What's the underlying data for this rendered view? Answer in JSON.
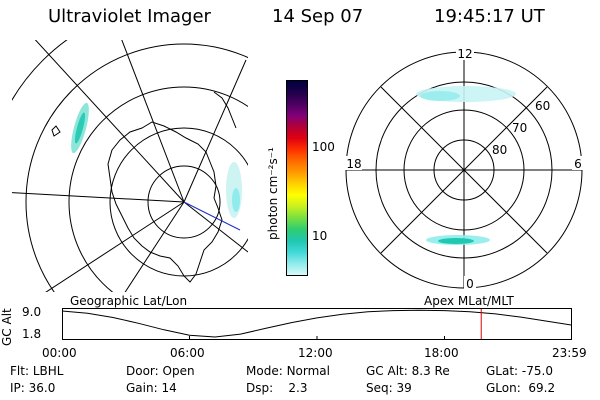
{
  "header": {
    "instrument": "Ultraviolet Imager",
    "date": "14 Sep 07",
    "time": "19:45:17 UT"
  },
  "colorbar": {
    "unit_label": "photon cm⁻²s⁻¹",
    "ticks": [
      "100",
      "10"
    ],
    "colors": [
      "#000040",
      "#20004a",
      "#4a0060",
      "#80007a",
      "#b0003a",
      "#e00010",
      "#ff3000",
      "#ff6a00",
      "#ff9a00",
      "#ffd000",
      "#ffff00",
      "#c8f020",
      "#78e040",
      "#30cc70",
      "#20c8b0",
      "#40d8d8",
      "#90ecec",
      "#d8f8f8"
    ]
  },
  "geo_panel": {
    "caption": "Geographic Lat/Lon"
  },
  "apex_panel": {
    "caption": "Apex MLat/MLT",
    "mlt_labels": {
      "top": "12",
      "left": "18",
      "right": "6",
      "bottom": "0"
    },
    "lat_labels": [
      "60",
      "70",
      "80"
    ]
  },
  "altitude_plot": {
    "axis_label": "GC Alt",
    "y_ticks": [
      "9.0",
      "1.8"
    ],
    "x_ticks": [
      "00:00",
      "06:00",
      "12:00",
      "18:00",
      "23:59"
    ],
    "current_time_fraction": 0.822,
    "orbit_curve": [
      [
        0,
        9.0
      ],
      [
        0.05,
        8.4
      ],
      [
        0.1,
        7.2
      ],
      [
        0.15,
        5.6
      ],
      [
        0.2,
        3.8
      ],
      [
        0.25,
        2.3
      ],
      [
        0.3,
        1.8
      ],
      [
        0.35,
        2.6
      ],
      [
        0.4,
        4.2
      ],
      [
        0.45,
        5.8
      ],
      [
        0.5,
        7.1
      ],
      [
        0.55,
        8.1
      ],
      [
        0.6,
        8.8
      ],
      [
        0.65,
        9.1
      ],
      [
        0.7,
        9.2
      ],
      [
        0.75,
        9.1
      ],
      [
        0.8,
        8.8
      ],
      [
        0.85,
        8.2
      ],
      [
        0.9,
        7.3
      ],
      [
        0.95,
        6.2
      ],
      [
        1.0,
        5.1
      ]
    ],
    "y_range": [
      1.8,
      9.0
    ]
  },
  "footer": {
    "filter": {
      "label": "Flt:",
      "value": "LBHL"
    },
    "ip": {
      "label": "IP:",
      "value": "36.0"
    },
    "door": {
      "label": "Door:",
      "value": "Open"
    },
    "gain": {
      "label": "Gain:",
      "value": "14"
    },
    "mode": {
      "label": "Mode:",
      "value": "Normal"
    },
    "dsp": {
      "label": "Dsp:",
      "value": "2.3"
    },
    "gc_alt": {
      "label": "GC Alt:",
      "value": "8.3 Re"
    },
    "seq": {
      "label": "Seq:",
      "value": "39"
    },
    "glat": {
      "label": "GLat:",
      "value": "-75.0"
    },
    "glon": {
      "label": "GLon:",
      "value": "69.2"
    }
  }
}
